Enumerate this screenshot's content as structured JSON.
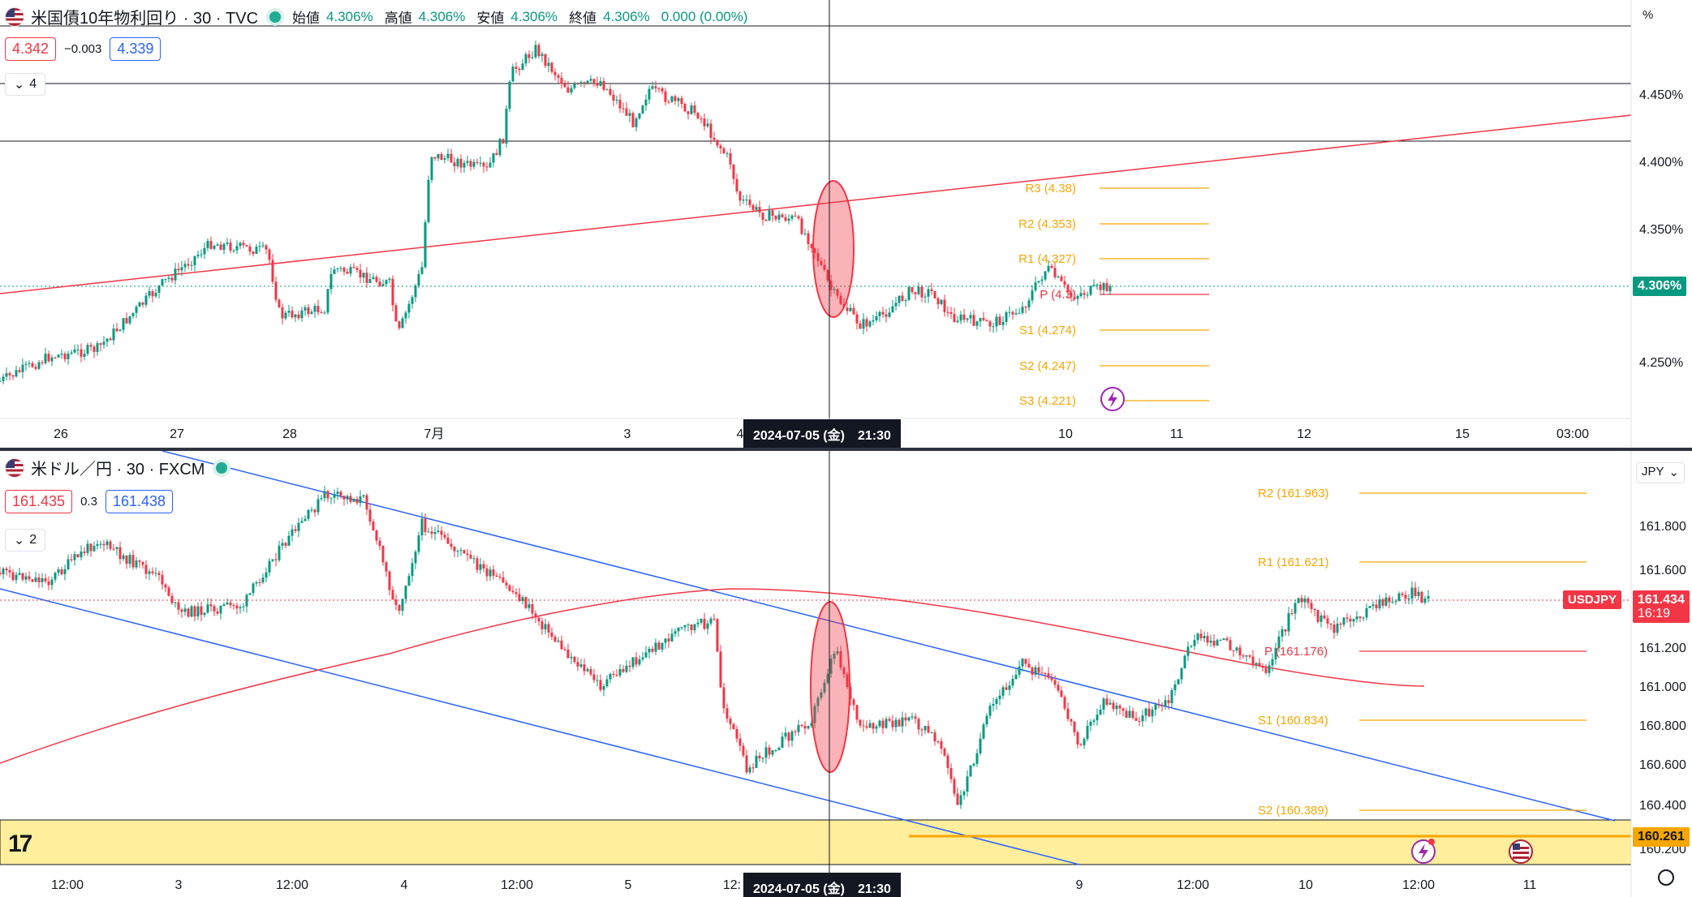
{
  "top_chart": {
    "symbol_title": "米国債10年物利回り · 30 · TVC",
    "ohlc": {
      "open_label": "始値",
      "open": "4.306%",
      "high_label": "高値",
      "high": "4.306%",
      "low_label": "安値",
      "low": "4.306%",
      "close_label": "終値",
      "close": "4.306%",
      "change": "0.000 (0.00%)"
    },
    "bid": "4.342",
    "spread": "−0.003",
    "ask": "4.339",
    "collapse_count": "4",
    "unit_label": "%",
    "price_axis": [
      "4.450%",
      "4.400%",
      "4.350%",
      "4.250%"
    ],
    "current_price_label": "4.306%",
    "time_axis": [
      "26",
      "27",
      "28",
      "7月",
      "3",
      "4",
      "10",
      "11",
      "12",
      "15",
      "03:00"
    ],
    "crosshair_time": "2024-07-05 (金)　21:30",
    "pivots": [
      "R3 (4.38)",
      "R2 (4.353)",
      "R1 (4.327)",
      "P (4.3)",
      "S1 (4.274)",
      "S2 (4.247)",
      "S3 (4.221)"
    ]
  },
  "bottom_chart": {
    "symbol_title": "米ドル／円 · 30 · FXCM",
    "bid": "161.435",
    "spread": "0.3",
    "ask": "161.438",
    "collapse_count": "2",
    "unit_label": "JPY",
    "price_axis": [
      "161.800",
      "161.600",
      "161.200",
      "161.000",
      "160.800",
      "160.600",
      "160.400",
      "160.200"
    ],
    "current_price_label": "161.434",
    "current_price_time": "16:19",
    "symbol_tag": "USDJPY",
    "level_label": "160.261",
    "time_axis": [
      "12:00",
      "3",
      "12:00",
      "4",
      "12:00",
      "5",
      "12:",
      "9",
      "12:00",
      "10",
      "12:00",
      "11"
    ],
    "crosshair_time": "2024-07-05 (金)　21:30",
    "pivots": [
      "R2 (161.963)",
      "R1 (161.621)",
      "P (161.176)",
      "S1 (160.834)",
      "S2 (160.389)"
    ]
  },
  "colors": {
    "up": "#089981",
    "down": "#f23645",
    "pivot": "#f7a600",
    "trend_red": "#f23645",
    "channel_blue": "#2962ff",
    "highlight": "#ffeb8a"
  },
  "branding": {
    "logo": "17"
  }
}
